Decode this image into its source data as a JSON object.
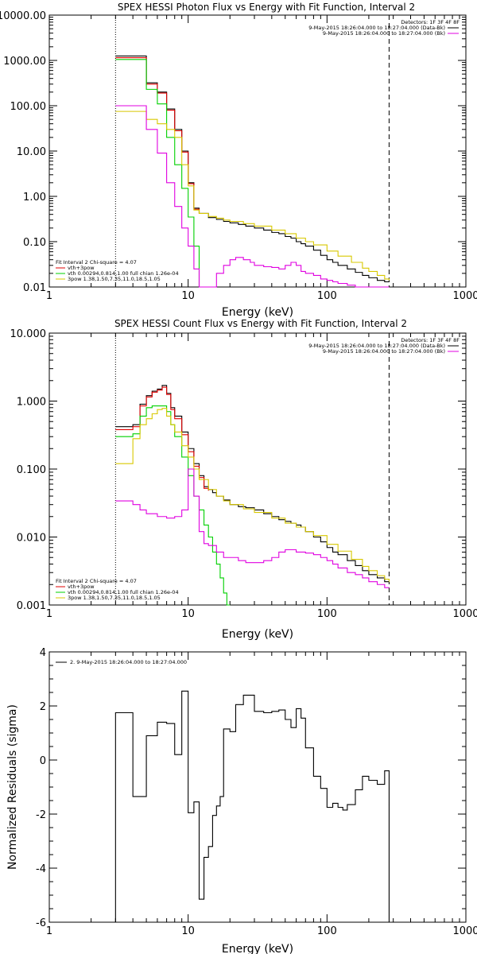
{
  "chart_data": [
    {
      "type": "line",
      "title": "SPEX HESSI Photon Flux vs Energy with Fit Function, Interval 2",
      "xlabel": "Energy (keV)",
      "ylabel": "",
      "xscale": "log",
      "yscale": "log",
      "xlim": [
        1,
        1000
      ],
      "ylim": [
        0.01,
        10000
      ],
      "xticks": [
        1,
        10,
        100,
        1000
      ],
      "xtick_labels": [
        "1",
        "10",
        "100",
        "1000"
      ],
      "yticks": [
        0.01,
        0.1,
        1,
        10,
        100,
        1000,
        10000
      ],
      "ytick_labels": [
        "0.01",
        "0.10",
        "1.00",
        "10.00",
        "100.00",
        "1000.00",
        "10000.00"
      ],
      "vlines": [
        {
          "x": 3,
          "style": "dotted"
        },
        {
          "x": 280,
          "style": "dashed"
        }
      ],
      "header_lines": [
        "Detectors: 1F 3F 4F 8F",
        "9-May-2015 18:26:04.000 to 18:27:04.000 (Data-Bk)",
        "9-May-2015 18:26:04.000 to 18:27:04.000 (Bk)"
      ],
      "legend_lines": [
        "Fit Interval 2   Chi-square = 4.07",
        "vth+3pow",
        "vth 0.00294,0.814,1.00  full chian 1.26e-04",
        "3pow 1.38,1.50,7.35,11.0,18.5,1.05"
      ],
      "series": [
        {
          "color": "#000000",
          "x": [
            3,
            3.5,
            4,
            5,
            6,
            7,
            8,
            9,
            10,
            11,
            12,
            14,
            16,
            18,
            20,
            23,
            26,
            30,
            35,
            40,
            45,
            50,
            55,
            60,
            65,
            70,
            80,
            90,
            100,
            110,
            120,
            140,
            160,
            180,
            200,
            230,
            260,
            280
          ],
          "y": [
            1250,
            1250,
            1250,
            320,
            200,
            85,
            30,
            10,
            2,
            0.55,
            0.42,
            0.34,
            0.31,
            0.28,
            0.26,
            0.24,
            0.22,
            0.2,
            0.18,
            0.16,
            0.15,
            0.13,
            0.12,
            0.1,
            0.09,
            0.08,
            0.065,
            0.05,
            0.04,
            0.035,
            0.03,
            0.025,
            0.021,
            0.018,
            0.016,
            0.014,
            0.013,
            0.013
          ]
        },
        {
          "color": "#e00000",
          "x": [
            3,
            3.5,
            4,
            5,
            6,
            7,
            8,
            9,
            10,
            11,
            12
          ],
          "y": [
            1150,
            1150,
            1150,
            300,
            190,
            80,
            28,
            9.5,
            1.9,
            0.52,
            0.42
          ]
        },
        {
          "color": "#00d000",
          "x": [
            3,
            3.5,
            4,
            5,
            6,
            7,
            8,
            9,
            10,
            11,
            12
          ],
          "y": [
            1050,
            1050,
            1050,
            230,
            110,
            20,
            5,
            1.5,
            0.35,
            0.08,
            0.01
          ]
        },
        {
          "color": "#d8c800",
          "x": [
            3,
            3.5,
            4,
            5,
            6,
            7,
            8,
            9,
            10,
            11,
            12,
            14,
            16,
            18,
            20,
            25,
            30,
            40,
            50,
            60,
            70,
            80,
            100,
            120,
            150,
            180,
            200,
            230,
            260,
            280
          ],
          "y": [
            75,
            75,
            75,
            50,
            40,
            30,
            20,
            5,
            1.7,
            0.5,
            0.42,
            0.36,
            0.33,
            0.3,
            0.28,
            0.25,
            0.22,
            0.18,
            0.15,
            0.12,
            0.1,
            0.085,
            0.062,
            0.048,
            0.035,
            0.026,
            0.022,
            0.018,
            0.015,
            0.014
          ]
        },
        {
          "color": "#e000e0",
          "x": [
            3,
            3.5,
            4,
            5,
            6,
            7,
            8,
            9,
            10,
            11,
            12,
            14,
            16,
            18,
            20,
            22,
            25,
            28,
            30,
            35,
            40,
            45,
            50,
            55,
            60,
            65,
            70,
            80,
            90,
            100,
            110,
            120,
            140,
            160,
            180,
            200,
            230,
            260,
            280
          ],
          "y": [
            100,
            100,
            100,
            30,
            9,
            2,
            0.6,
            0.2,
            0.08,
            0.025,
            0.008,
            0.01,
            0.02,
            0.03,
            0.04,
            0.045,
            0.04,
            0.035,
            0.03,
            0.028,
            0.027,
            0.025,
            0.03,
            0.035,
            0.03,
            0.022,
            0.02,
            0.018,
            0.015,
            0.014,
            0.013,
            0.012,
            0.011,
            0.01,
            0.01,
            0.01,
            0.009,
            0.009,
            0.009
          ]
        }
      ]
    },
    {
      "type": "line",
      "title": "SPEX HESSI Count Flux vs Energy with Fit Function, Interval 2",
      "xlabel": "Energy (keV)",
      "ylabel": "",
      "xscale": "log",
      "yscale": "log",
      "xlim": [
        1,
        1000
      ],
      "ylim": [
        0.001,
        10
      ],
      "xticks": [
        1,
        10,
        100,
        1000
      ],
      "xtick_labels": [
        "1",
        "10",
        "100",
        "1000"
      ],
      "yticks": [
        0.001,
        0.01,
        0.1,
        1,
        10
      ],
      "ytick_labels": [
        "0.001",
        "0.010",
        "0.100",
        "1.000",
        "10.000"
      ],
      "vlines": [
        {
          "x": 3,
          "style": "dotted"
        },
        {
          "x": 280,
          "style": "dashed"
        }
      ],
      "header_lines": [
        "Detectors: 1F 3F 4F 8F",
        "9-May-2015 18:26:04.000 to 18:27:04.000 (Data-Bk)",
        "9-May-2015 18:26:04.000 to 18:27:04.000 (Bk)"
      ],
      "legend_lines": [
        "Fit Interval 2   Chi-square = 4.07",
        "vth+3pow",
        "vth 0.00294,0.814,1.00  full chian 1.26e-04",
        "3pow 1.38,1.50,7.35,11.0,18.5,1.05"
      ],
      "series": [
        {
          "color": "#000000",
          "x": [
            3,
            3.5,
            4,
            4.5,
            5,
            5.5,
            6,
            6.5,
            7,
            7.5,
            8,
            9,
            10,
            11,
            12,
            13,
            14,
            15,
            16,
            18,
            20,
            23,
            26,
            30,
            35,
            40,
            45,
            50,
            55,
            60,
            65,
            70,
            80,
            90,
            100,
            110,
            120,
            140,
            160,
            180,
            200,
            230,
            260,
            280
          ],
          "y": [
            0.42,
            0.42,
            0.45,
            0.9,
            1.2,
            1.4,
            1.5,
            1.7,
            1.3,
            0.8,
            0.6,
            0.35,
            0.2,
            0.12,
            0.08,
            0.055,
            0.05,
            0.045,
            0.04,
            0.035,
            0.03,
            0.028,
            0.027,
            0.025,
            0.022,
            0.02,
            0.018,
            0.017,
            0.016,
            0.015,
            0.014,
            0.012,
            0.01,
            0.0085,
            0.007,
            0.006,
            0.0055,
            0.0045,
            0.0038,
            0.0032,
            0.0028,
            0.0025,
            0.0022,
            0.0022
          ]
        },
        {
          "color": "#e00000",
          "x": [
            3,
            3.5,
            4,
            4.5,
            5,
            5.5,
            6,
            6.5,
            7,
            7.5,
            8,
            9,
            10,
            11,
            12,
            13,
            14
          ],
          "y": [
            0.38,
            0.38,
            0.42,
            0.85,
            1.15,
            1.35,
            1.45,
            1.6,
            1.25,
            0.75,
            0.55,
            0.32,
            0.18,
            0.11,
            0.075,
            0.052,
            0.048
          ]
        },
        {
          "color": "#00d000",
          "x": [
            3,
            3.5,
            4,
            4.5,
            5,
            5.5,
            6,
            6.5,
            7,
            7.5,
            8,
            9,
            10,
            11,
            12,
            13,
            14,
            15,
            16,
            17,
            18,
            19,
            20
          ],
          "y": [
            0.3,
            0.3,
            0.33,
            0.6,
            0.8,
            0.85,
            0.85,
            0.85,
            0.7,
            0.45,
            0.3,
            0.15,
            0.08,
            0.04,
            0.025,
            0.015,
            0.01,
            0.006,
            0.004,
            0.0025,
            0.0015,
            0.001,
            0.001
          ]
        },
        {
          "color": "#d8c800",
          "x": [
            3,
            3.5,
            4,
            4.5,
            5,
            5.5,
            6,
            6.5,
            7,
            7.5,
            8,
            9,
            10,
            11,
            12,
            14,
            16,
            18,
            20,
            25,
            30,
            40,
            50,
            60,
            70,
            80,
            100,
            120,
            150,
            180,
            200,
            230,
            260,
            280
          ],
          "y": [
            0.12,
            0.12,
            0.28,
            0.45,
            0.55,
            0.65,
            0.75,
            0.78,
            0.6,
            0.45,
            0.35,
            0.22,
            0.15,
            0.1,
            0.07,
            0.05,
            0.04,
            0.034,
            0.03,
            0.026,
            0.023,
            0.019,
            0.016,
            0.014,
            0.012,
            0.0105,
            0.0078,
            0.0062,
            0.0047,
            0.0037,
            0.0032,
            0.0027,
            0.0024,
            0.0022
          ]
        },
        {
          "color": "#e000e0",
          "x": [
            3,
            3.5,
            4,
            4.5,
            5,
            6,
            7,
            8,
            9,
            10,
            11,
            12,
            13,
            14,
            16,
            18,
            20,
            23,
            26,
            30,
            35,
            40,
            45,
            50,
            55,
            60,
            65,
            70,
            80,
            90,
            100,
            110,
            120,
            140,
            160,
            180,
            200,
            230,
            260,
            280
          ],
          "y": [
            0.034,
            0.034,
            0.03,
            0.025,
            0.022,
            0.02,
            0.019,
            0.02,
            0.025,
            0.1,
            0.04,
            0.012,
            0.008,
            0.0075,
            0.006,
            0.005,
            0.005,
            0.0045,
            0.0042,
            0.0042,
            0.0045,
            0.005,
            0.006,
            0.0065,
            0.0065,
            0.006,
            0.006,
            0.0058,
            0.0055,
            0.005,
            0.0045,
            0.004,
            0.0035,
            0.003,
            0.0028,
            0.0025,
            0.0022,
            0.002,
            0.0018,
            0.0018
          ]
        }
      ]
    },
    {
      "type": "line",
      "title": "",
      "xlabel": "Energy (keV)",
      "ylabel": "Normalized Residuals (sigma)",
      "xscale": "log",
      "yscale": "linear",
      "xlim": [
        1,
        1000
      ],
      "ylim": [
        -6,
        4
      ],
      "xticks": [
        1,
        10,
        100,
        1000
      ],
      "xtick_labels": [
        "1",
        "10",
        "100",
        "1000"
      ],
      "yticks": [
        -6,
        -4,
        -2,
        0,
        2,
        4
      ],
      "ytick_labels": [
        "-6",
        "-4",
        "-2",
        "0",
        "2",
        "4"
      ],
      "legend_lines": [
        "2.  9-May-2015 18:26:04.000 to 18:27:04.000"
      ],
      "series": [
        {
          "color": "#000000",
          "x": [
            3,
            4,
            5,
            6,
            7,
            8,
            9,
            10,
            11,
            12,
            13,
            14,
            15,
            16,
            17,
            18,
            20,
            22,
            25,
            30,
            35,
            40,
            45,
            50,
            55,
            60,
            65,
            70,
            80,
            90,
            100,
            110,
            120,
            130,
            140,
            160,
            180,
            200,
            230,
            260,
            280
          ],
          "y": [
            1.75,
            -1.35,
            0.9,
            1.4,
            1.35,
            0.2,
            2.55,
            -1.95,
            -1.55,
            -5.15,
            -3.6,
            -3.2,
            -2.05,
            -1.7,
            -1.35,
            1.15,
            1.05,
            2.05,
            2.4,
            1.8,
            1.75,
            1.8,
            1.85,
            1.5,
            1.2,
            1.9,
            1.55,
            0.45,
            -0.6,
            -1.05,
            -1.75,
            -1.6,
            -1.75,
            -1.85,
            -1.65,
            -1.1,
            -0.6,
            -0.75,
            -0.9,
            -0.4,
            -0.4
          ]
        }
      ]
    }
  ]
}
